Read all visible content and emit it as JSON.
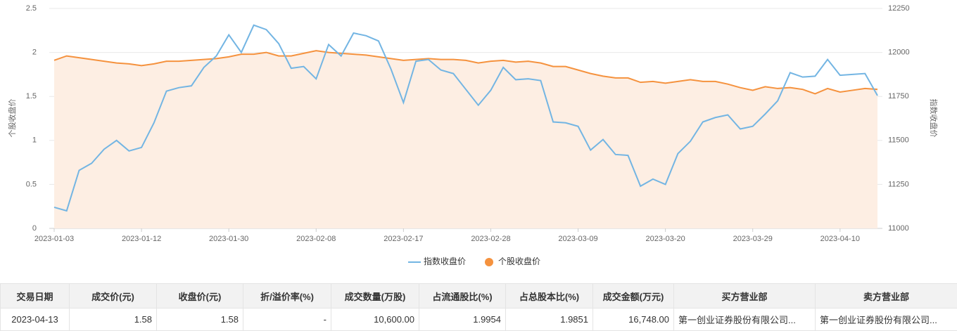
{
  "chart_data": {
    "type": "line",
    "ylabel": "个股收盘价",
    "y2label": "指数收盘价",
    "categories": [
      "2023-01-03",
      null,
      null,
      null,
      null,
      null,
      null,
      "2023-01-12",
      null,
      null,
      null,
      null,
      null,
      null,
      "2023-01-30",
      null,
      null,
      null,
      null,
      null,
      null,
      "2023-02-08",
      null,
      null,
      null,
      null,
      null,
      null,
      "2023-02-17",
      null,
      null,
      null,
      null,
      null,
      null,
      "2023-02-28",
      null,
      null,
      null,
      null,
      null,
      null,
      "2023-03-09",
      null,
      null,
      null,
      null,
      null,
      null,
      "2023-03-20",
      null,
      null,
      null,
      null,
      null,
      null,
      "2023-03-29",
      null,
      null,
      null,
      null,
      null,
      null,
      "2023-04-10",
      null,
      null,
      null
    ],
    "series": [
      {
        "name": "指数收盘价",
        "color": "#73b5e3",
        "axis": "y2",
        "values": [
          11120,
          11100,
          11330,
          11370,
          11450,
          11500,
          11440,
          11460,
          11600,
          11780,
          11800,
          11810,
          11915,
          11980,
          12100,
          12000,
          12155,
          12130,
          12050,
          11910,
          11920,
          11850,
          12045,
          11980,
          12110,
          12095,
          12065,
          11905,
          11715,
          11950,
          11960,
          11900,
          11880,
          11790,
          11700,
          11785,
          11915,
          11845,
          11850,
          11840,
          11605,
          11600,
          11580,
          11445,
          11505,
          11420,
          11415,
          11240,
          11280,
          11250,
          11425,
          11495,
          11605,
          11630,
          11645,
          11565,
          11580,
          11650,
          11725,
          11885,
          11860,
          11865,
          11960,
          11870,
          11875,
          11880,
          11755
        ]
      },
      {
        "name": "个股收盘价",
        "color": "#f5923e",
        "area_color": "#fdeee3",
        "values": [
          1.91,
          1.96,
          1.94,
          1.92,
          1.9,
          1.88,
          1.87,
          1.85,
          1.87,
          1.9,
          1.9,
          1.91,
          1.92,
          1.93,
          1.95,
          1.98,
          1.98,
          2.0,
          1.96,
          1.96,
          1.99,
          2.02,
          2.0,
          1.99,
          1.98,
          1.97,
          1.95,
          1.93,
          1.91,
          1.92,
          1.93,
          1.92,
          1.92,
          1.91,
          1.88,
          1.9,
          1.91,
          1.89,
          1.9,
          1.88,
          1.84,
          1.84,
          1.8,
          1.76,
          1.73,
          1.71,
          1.71,
          1.66,
          1.67,
          1.65,
          1.67,
          1.69,
          1.67,
          1.67,
          1.64,
          1.6,
          1.57,
          1.61,
          1.59,
          1.6,
          1.58,
          1.53,
          1.59,
          1.55,
          1.57,
          1.59,
          1.58
        ]
      }
    ],
    "ylim": [
      0,
      2.5
    ],
    "yticks": [
      0,
      0.5,
      1,
      1.5,
      2,
      2.5
    ],
    "y2lim": [
      11000,
      12250
    ],
    "y2ticks": [
      11000,
      11250,
      11500,
      11750,
      12000,
      12250
    ],
    "grid": true,
    "legend": "bottom"
  },
  "table": {
    "header": [
      "交易日期",
      "成交价(元)",
      "收盘价(元)",
      "折/溢价率(%)",
      "成交数量(万股)",
      "占流通股比(%)",
      "占总股本比(%)",
      "成交金额(万元)",
      "买方营业部",
      "卖方营业部"
    ],
    "rows": [
      [
        "2023-04-13",
        "1.58",
        "1.58",
        "-",
        "10,600.00",
        "1.9954",
        "1.9851",
        "16,748.00",
        "第一创业证券股份有限公司...",
        "第一创业证券股份有限公司..."
      ]
    ]
  }
}
